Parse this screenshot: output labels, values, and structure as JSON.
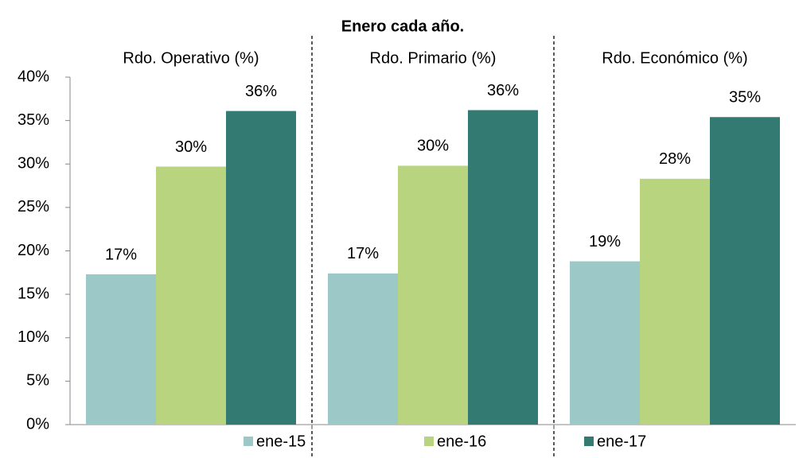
{
  "chart_data": {
    "type": "bar",
    "title": "Enero cada año.",
    "categories": [
      "Rdo. Operativo (%)",
      "Rdo. Primario (%)",
      "Rdo. Económico (%)"
    ],
    "series": [
      {
        "name": "ene-15",
        "color": "#9dc8c8",
        "values": [
          17.3,
          17.4,
          18.8
        ],
        "value_labels": [
          "17%",
          "17%",
          "19%"
        ]
      },
      {
        "name": "ene-16",
        "color": "#b8d47f",
        "values": [
          29.7,
          29.8,
          28.3
        ],
        "value_labels": [
          "30%",
          "30%",
          "28%"
        ]
      },
      {
        "name": "ene-17",
        "color": "#337a73",
        "values": [
          36.1,
          36.2,
          35.4
        ],
        "value_labels": [
          "36%",
          "36%",
          "35%"
        ]
      }
    ],
    "ylim": [
      0,
      40
    ],
    "yticks": [
      {
        "value": 0,
        "label": "0%"
      },
      {
        "value": 5,
        "label": "5%"
      },
      {
        "value": 10,
        "label": "10%"
      },
      {
        "value": 15,
        "label": "15%"
      },
      {
        "value": 20,
        "label": "20%"
      },
      {
        "value": 25,
        "label": "25%"
      },
      {
        "value": 30,
        "label": "30%"
      },
      {
        "value": 35,
        "label": "35%"
      },
      {
        "value": 40,
        "label": "40%"
      }
    ],
    "grid": false,
    "legend": "bottom"
  }
}
